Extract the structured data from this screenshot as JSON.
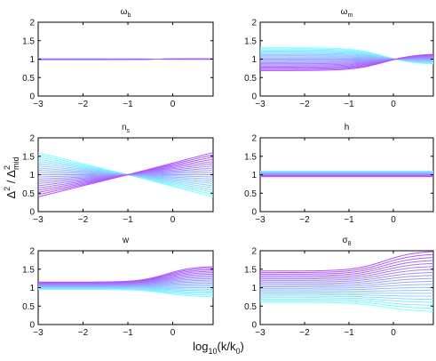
{
  "figure": {
    "xlabel": {
      "pre": "log",
      "sub10": "10",
      "mid": "(k/k",
      "sub0": "0",
      "post": ")"
    },
    "ylabel": {
      "d1": "Δ",
      "sup1": "2",
      "sep": " / Δ",
      "sup2": "2",
      "sub": "mid"
    }
  },
  "chart_data": [
    {
      "type": "line",
      "title": {
        "main": "ω",
        "sub": "b"
      },
      "xlim": [
        -3,
        0.9
      ],
      "ylim": [
        0,
        2
      ],
      "xticks": [
        -3,
        -2,
        -1,
        0
      ],
      "yticks": [
        0,
        0.5,
        1,
        1.5,
        2
      ],
      "xticklabels": [
        "−3",
        "−2",
        "−1",
        "0"
      ],
      "yticklabels": [
        "0",
        "0.5",
        "1",
        "1.5",
        "2"
      ],
      "grid": false,
      "series_count": 21,
      "colormap": [
        "#7fffff",
        "#b050ff"
      ],
      "curve_model": {
        "form": "pivot",
        "pivot_x": -0.5,
        "low_amp": 0.03,
        "high_amp": -0.02
      }
    },
    {
      "type": "line",
      "title": {
        "main": "ω",
        "sub": "m"
      },
      "xlim": [
        -3,
        0.9
      ],
      "ylim": [
        0,
        2
      ],
      "xticks": [
        -3,
        -2,
        -1,
        0
      ],
      "yticks": [
        0,
        0.5,
        1,
        1.5,
        2
      ],
      "xticklabels": [
        "−3",
        "−2",
        "−1",
        "0"
      ],
      "yticklabels": [
        "0",
        "0.5",
        "1",
        "1.5",
        "2"
      ],
      "grid": false,
      "series_count": 21,
      "colormap": [
        "#7fffff",
        "#b050ff"
      ],
      "curve_model": {
        "form": "pivot",
        "pivot_x": -0.2,
        "low_amp": 0.62,
        "high_amp": -0.3
      }
    },
    {
      "type": "line",
      "title": {
        "main": "n",
        "sub": "s"
      },
      "xlim": [
        -3,
        0.9
      ],
      "ylim": [
        0,
        2
      ],
      "xticks": [
        -3,
        -2,
        -1,
        0
      ],
      "yticks": [
        0,
        0.5,
        1,
        1.5,
        2
      ],
      "xticklabels": [
        "−3",
        "−2",
        "−1",
        "0"
      ],
      "yticklabels": [
        "0",
        "0.5",
        "1",
        "1.5",
        "2"
      ],
      "grid": false,
      "series_count": 21,
      "colormap": [
        "#7fffff",
        "#b050ff"
      ],
      "curve_model": {
        "form": "linear-pivot",
        "pivot_x": -1,
        "low_amp": 0.6,
        "high_amp": -0.6
      }
    },
    {
      "type": "line",
      "title": {
        "main": "h",
        "sub": ""
      },
      "xlim": [
        -3,
        0.9
      ],
      "ylim": [
        0,
        2
      ],
      "xticks": [
        -3,
        -2,
        -1,
        0
      ],
      "yticks": [
        0,
        0.5,
        1,
        1.5,
        2
      ],
      "xticklabels": [
        "−3",
        "−2",
        "−1",
        "0"
      ],
      "yticklabels": [
        "0",
        "0.5",
        "1",
        "1.5",
        "2"
      ],
      "grid": false,
      "series_count": 21,
      "colormap": [
        "#7fffff",
        "#b050ff"
      ],
      "curve_model": {
        "form": "flat",
        "top": 1.1,
        "bottom": 0.95
      }
    },
    {
      "type": "line",
      "title": {
        "main": "w",
        "sub": ""
      },
      "xlim": [
        -3,
        0.9
      ],
      "ylim": [
        0,
        2
      ],
      "xticks": [
        -3,
        -2,
        -1,
        0
      ],
      "yticks": [
        0,
        0.5,
        1,
        1.5,
        2
      ],
      "xticklabels": [
        "−3",
        "−2",
        "−1",
        "0"
      ],
      "yticklabels": [
        "0",
        "0.5",
        "1",
        "1.5",
        "2"
      ],
      "grid": false,
      "series_count": 21,
      "colormap": [
        "#7fffff",
        "#b050ff"
      ],
      "curve_model": {
        "form": "late-rise",
        "flat_top": 1.15,
        "flat_bottom": 0.95,
        "rise_x": -0.5,
        "end_top": 1.58,
        "end_bottom": 0.75
      }
    },
    {
      "type": "line",
      "title": {
        "main": "σ",
        "sub": "8"
      },
      "xlim": [
        -3,
        0.9
      ],
      "ylim": [
        0,
        2
      ],
      "xticks": [
        -3,
        -2,
        -1,
        0
      ],
      "yticks": [
        0,
        0.5,
        1,
        1.5,
        2
      ],
      "xticklabels": [
        "−3",
        "−2",
        "−1",
        "0"
      ],
      "yticklabels": [
        "0",
        "0.5",
        "1",
        "1.5",
        "2"
      ],
      "grid": false,
      "series_count": 21,
      "colormap": [
        "#7fffff",
        "#b050ff"
      ],
      "curve_model": {
        "form": "fan-rise",
        "flat_top": 1.45,
        "flat_bottom": 0.6,
        "rise_x": -0.8,
        "end_top": 2.0,
        "end_bottom": 0.35
      }
    }
  ]
}
